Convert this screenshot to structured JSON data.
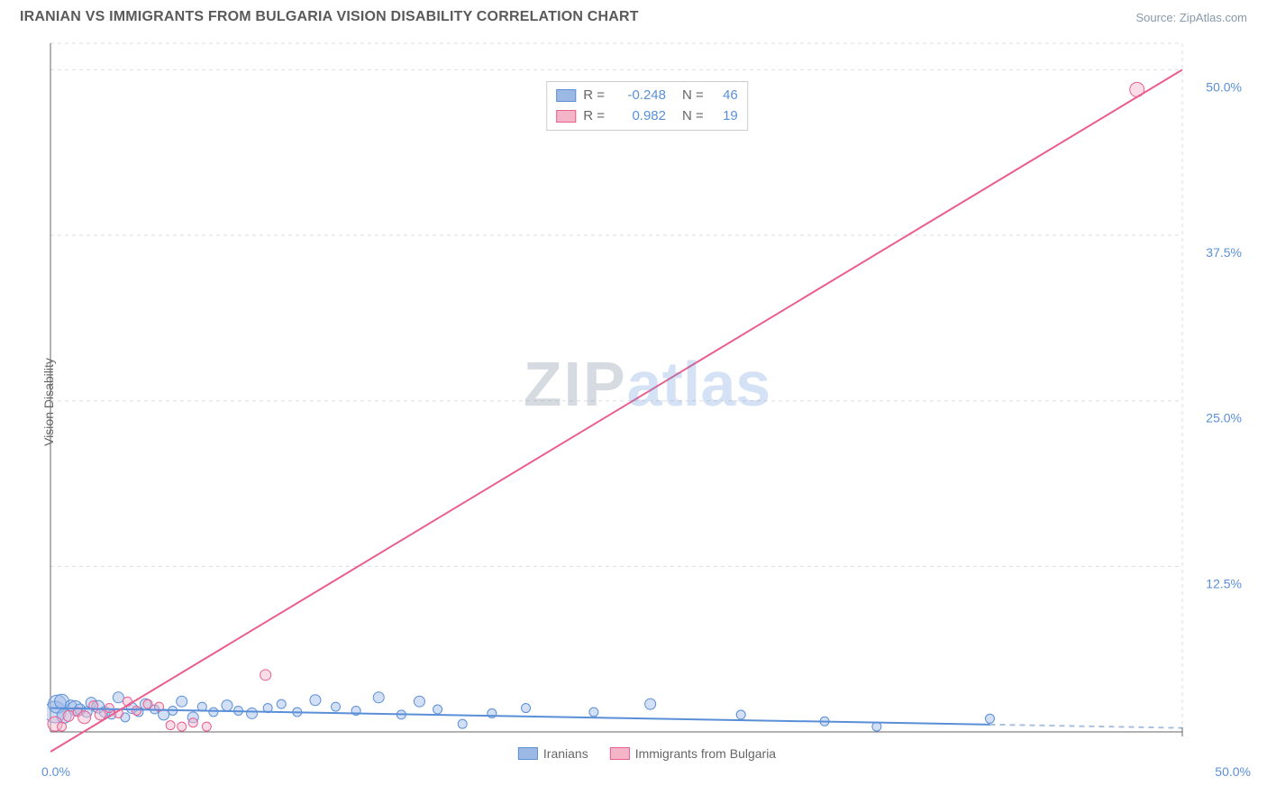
{
  "header": {
    "title": "IRANIAN VS IMMIGRANTS FROM BULGARIA VISION DISABILITY CORRELATION CHART",
    "source": "Source: ZipAtlas.com"
  },
  "watermark": {
    "part1": "ZIP",
    "part2": "atlas"
  },
  "chart": {
    "type": "scatter",
    "y_axis_label": "Vision Disability",
    "xlim": [
      0,
      50
    ],
    "ylim": [
      0,
      52
    ],
    "background_color": "#ffffff",
    "grid_color": "#dddddd",
    "grid_dash": "4,4",
    "axis_line_color": "#666666",
    "tick_label_color": "#5a8fd8",
    "tick_fontsize": 14,
    "y_ticks": [
      12.5,
      25.0,
      37.5,
      50.0
    ],
    "y_tick_labels": [
      "12.5%",
      "25.0%",
      "37.5%",
      "50.0%"
    ],
    "x_origin_label": "0.0%",
    "x_max_label": "50.0%",
    "series": [
      {
        "name": "Iranians",
        "fill_color": "#9cb9e6",
        "stroke_color": "#5a8fd8",
        "fill_opacity": 0.45,
        "regression_line": {
          "slope": -0.03,
          "intercept": 1.8,
          "color": "#5a8fd8",
          "width": 2
        },
        "dashed_extension": true,
        "points": [
          {
            "x": 0.2,
            "y": 1.5,
            "r": 12
          },
          {
            "x": 0.3,
            "y": 2.1,
            "r": 10
          },
          {
            "x": 0.5,
            "y": 2.3,
            "r": 8
          },
          {
            "x": 0.6,
            "y": 1.2,
            "r": 8
          },
          {
            "x": 0.9,
            "y": 2.0,
            "r": 6
          },
          {
            "x": 1.1,
            "y": 1.8,
            "r": 8
          },
          {
            "x": 1.3,
            "y": 1.7,
            "r": 6
          },
          {
            "x": 1.6,
            "y": 1.5,
            "r": 6
          },
          {
            "x": 1.8,
            "y": 2.2,
            "r": 6
          },
          {
            "x": 2.1,
            "y": 1.9,
            "r": 7
          },
          {
            "x": 2.4,
            "y": 1.5,
            "r": 6
          },
          {
            "x": 2.7,
            "y": 1.3,
            "r": 5
          },
          {
            "x": 3.0,
            "y": 2.6,
            "r": 6
          },
          {
            "x": 3.3,
            "y": 1.1,
            "r": 5
          },
          {
            "x": 3.6,
            "y": 1.8,
            "r": 6
          },
          {
            "x": 3.9,
            "y": 1.5,
            "r": 5
          },
          {
            "x": 4.2,
            "y": 2.1,
            "r": 6
          },
          {
            "x": 4.6,
            "y": 1.7,
            "r": 5
          },
          {
            "x": 5.0,
            "y": 1.3,
            "r": 6
          },
          {
            "x": 5.4,
            "y": 1.6,
            "r": 5
          },
          {
            "x": 5.8,
            "y": 2.3,
            "r": 6
          },
          {
            "x": 6.3,
            "y": 1.1,
            "r": 6
          },
          {
            "x": 6.7,
            "y": 1.9,
            "r": 5
          },
          {
            "x": 7.2,
            "y": 1.5,
            "r": 5
          },
          {
            "x": 7.8,
            "y": 2.0,
            "r": 6
          },
          {
            "x": 8.3,
            "y": 1.6,
            "r": 5
          },
          {
            "x": 8.9,
            "y": 1.4,
            "r": 6
          },
          {
            "x": 9.6,
            "y": 1.8,
            "r": 5
          },
          {
            "x": 10.2,
            "y": 2.1,
            "r": 5
          },
          {
            "x": 10.9,
            "y": 1.5,
            "r": 5
          },
          {
            "x": 11.7,
            "y": 2.4,
            "r": 6
          },
          {
            "x": 12.6,
            "y": 1.9,
            "r": 5
          },
          {
            "x": 13.5,
            "y": 1.6,
            "r": 5
          },
          {
            "x": 14.5,
            "y": 2.6,
            "r": 6
          },
          {
            "x": 15.5,
            "y": 1.3,
            "r": 5
          },
          {
            "x": 16.3,
            "y": 2.3,
            "r": 6
          },
          {
            "x": 17.1,
            "y": 1.7,
            "r": 5
          },
          {
            "x": 18.2,
            "y": 0.6,
            "r": 5
          },
          {
            "x": 19.5,
            "y": 1.4,
            "r": 5
          },
          {
            "x": 21.0,
            "y": 1.8,
            "r": 5
          },
          {
            "x": 24.0,
            "y": 1.5,
            "r": 5
          },
          {
            "x": 26.5,
            "y": 2.1,
            "r": 6
          },
          {
            "x": 30.5,
            "y": 1.3,
            "r": 5
          },
          {
            "x": 34.2,
            "y": 0.8,
            "r": 5
          },
          {
            "x": 36.5,
            "y": 0.4,
            "r": 5
          },
          {
            "x": 41.5,
            "y": 1.0,
            "r": 5
          }
        ]
      },
      {
        "name": "Immigrants from Bulgaria",
        "fill_color": "#f5b5c9",
        "stroke_color": "#ea5e8f",
        "fill_opacity": 0.45,
        "regression_line": {
          "slope": 1.03,
          "intercept": -1.5,
          "color": "#ea5e8f",
          "width": 2
        },
        "dashed_extension": false,
        "points": [
          {
            "x": 0.2,
            "y": 0.6,
            "r": 8
          },
          {
            "x": 0.5,
            "y": 0.4,
            "r": 5
          },
          {
            "x": 0.8,
            "y": 1.2,
            "r": 6
          },
          {
            "x": 1.2,
            "y": 1.5,
            "r": 5
          },
          {
            "x": 1.5,
            "y": 1.1,
            "r": 7
          },
          {
            "x": 1.9,
            "y": 2.0,
            "r": 5
          },
          {
            "x": 2.2,
            "y": 1.3,
            "r": 6
          },
          {
            "x": 2.6,
            "y": 1.8,
            "r": 5
          },
          {
            "x": 3.0,
            "y": 1.4,
            "r": 5
          },
          {
            "x": 3.4,
            "y": 2.3,
            "r": 5
          },
          {
            "x": 3.8,
            "y": 1.6,
            "r": 5
          },
          {
            "x": 4.3,
            "y": 2.1,
            "r": 5
          },
          {
            "x": 4.8,
            "y": 1.9,
            "r": 5
          },
          {
            "x": 5.3,
            "y": 0.5,
            "r": 5
          },
          {
            "x": 5.8,
            "y": 0.4,
            "r": 5
          },
          {
            "x": 6.3,
            "y": 0.7,
            "r": 5
          },
          {
            "x": 6.9,
            "y": 0.4,
            "r": 5
          },
          {
            "x": 9.5,
            "y": 4.3,
            "r": 6
          },
          {
            "x": 48.0,
            "y": 48.5,
            "r": 8
          }
        ]
      }
    ],
    "stats_legend": {
      "rows": [
        {
          "swatch_fill": "#9cb9e6",
          "swatch_stroke": "#5a8fd8",
          "r": "-0.248",
          "n": "46"
        },
        {
          "swatch_fill": "#f5b5c9",
          "swatch_stroke": "#ea5e8f",
          "r": "0.982",
          "n": "19"
        }
      ],
      "labels": {
        "r": "R =",
        "n": "N ="
      }
    },
    "bottom_legend": [
      {
        "swatch_fill": "#9cb9e6",
        "swatch_stroke": "#5a8fd8",
        "label": "Iranians"
      },
      {
        "swatch_fill": "#f5b5c9",
        "swatch_stroke": "#ea5e8f",
        "label": "Immigrants from Bulgaria"
      }
    ]
  }
}
